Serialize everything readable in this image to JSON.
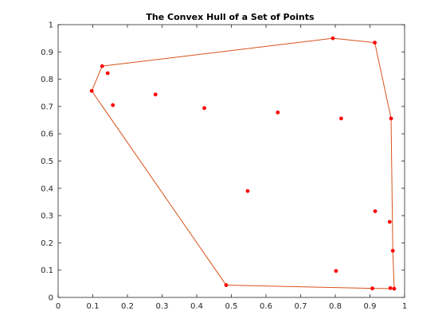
{
  "chart_data": {
    "type": "scatter",
    "title": "The Convex Hull of a Set of Points",
    "xlabel": "",
    "ylabel": "",
    "xlim": [
      0,
      1
    ],
    "ylim": [
      0,
      1
    ],
    "xticks": [
      "0",
      "0.1",
      "0.2",
      "0.3",
      "0.4",
      "0.5",
      "0.6",
      "0.7",
      "0.8",
      "0.9",
      "1"
    ],
    "yticks": [
      "0",
      "0.1",
      "0.2",
      "0.3",
      "0.4",
      "0.5",
      "0.6",
      "0.7",
      "0.8",
      "0.9",
      "1"
    ],
    "grid": false,
    "points": [
      {
        "x": 0.097,
        "y": 0.757
      },
      {
        "x": 0.127,
        "y": 0.848
      },
      {
        "x": 0.143,
        "y": 0.822
      },
      {
        "x": 0.158,
        "y": 0.705
      },
      {
        "x": 0.281,
        "y": 0.744
      },
      {
        "x": 0.422,
        "y": 0.694
      },
      {
        "x": 0.485,
        "y": 0.045
      },
      {
        "x": 0.547,
        "y": 0.39
      },
      {
        "x": 0.634,
        "y": 0.678
      },
      {
        "x": 0.793,
        "y": 0.95
      },
      {
        "x": 0.802,
        "y": 0.097
      },
      {
        "x": 0.817,
        "y": 0.656
      },
      {
        "x": 0.907,
        "y": 0.033
      },
      {
        "x": 0.914,
        "y": 0.934
      },
      {
        "x": 0.915,
        "y": 0.316
      },
      {
        "x": 0.957,
        "y": 0.277
      },
      {
        "x": 0.959,
        "y": 0.034
      },
      {
        "x": 0.961,
        "y": 0.656
      },
      {
        "x": 0.966,
        "y": 0.171
      },
      {
        "x": 0.97,
        "y": 0.032
      }
    ],
    "hull": [
      {
        "x": 0.097,
        "y": 0.757
      },
      {
        "x": 0.127,
        "y": 0.848
      },
      {
        "x": 0.793,
        "y": 0.95
      },
      {
        "x": 0.914,
        "y": 0.934
      },
      {
        "x": 0.961,
        "y": 0.656
      },
      {
        "x": 0.966,
        "y": 0.171
      },
      {
        "x": 0.97,
        "y": 0.032
      },
      {
        "x": 0.907,
        "y": 0.033
      },
      {
        "x": 0.485,
        "y": 0.045
      },
      {
        "x": 0.097,
        "y": 0.757
      }
    ],
    "colors": {
      "points": "#ff0000",
      "hull": "#d95319",
      "axes": "#262626",
      "background": "#ffffff"
    }
  }
}
